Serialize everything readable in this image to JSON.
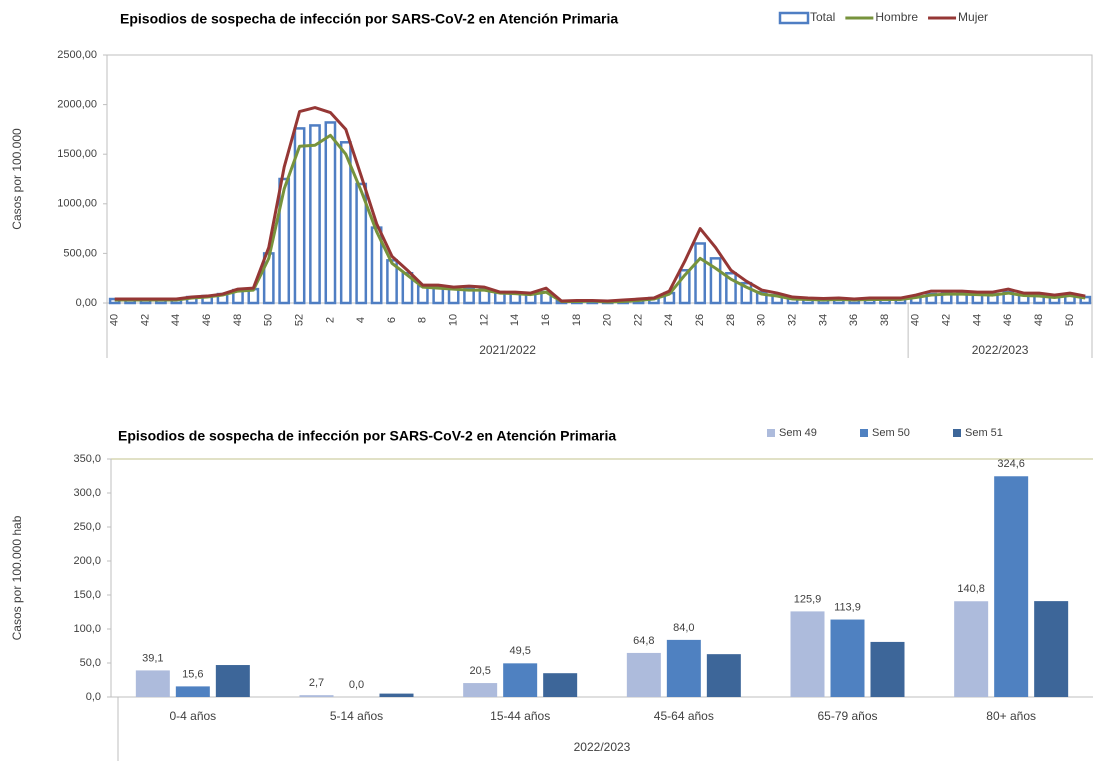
{
  "chart_data": [
    {
      "type": "combo",
      "title": "Episodios de sospecha de infección por SARS-CoV-2 en Atención Primaria",
      "y_label": "Casos por 100.000",
      "groups": [
        "2021/2022",
        "2022/2023"
      ],
      "categories": [
        "40",
        null,
        "42",
        null,
        "44",
        null,
        "46",
        null,
        "48",
        null,
        "50",
        null,
        "52",
        null,
        "2",
        null,
        "4",
        null,
        "6",
        null,
        "8",
        null,
        "10",
        null,
        "12",
        null,
        "14",
        null,
        "16",
        null,
        "18",
        null,
        "20",
        null,
        "22",
        null,
        "24",
        null,
        "26",
        null,
        "28",
        null,
        "30",
        null,
        "32",
        null,
        "34",
        null,
        "36",
        null,
        "38",
        null,
        "40",
        null,
        "42",
        null,
        "44",
        null,
        "46",
        null,
        "48",
        null,
        "50",
        null
      ],
      "ylim": [
        0,
        2500
      ],
      "yticks": [
        {
          "value": 0,
          "label": "0,00"
        },
        {
          "value": 500,
          "label": "500,00"
        },
        {
          "value": 1000,
          "label": "1000,00"
        },
        {
          "value": 1500,
          "label": "1500,00"
        },
        {
          "value": 2000,
          "label": "2000,00"
        },
        {
          "value": 2500,
          "label": "2500,00"
        }
      ],
      "grid": false,
      "legend": "top-right",
      "series": [
        {
          "name": "Total",
          "type": "bar",
          "color": "#4f7ec3",
          "values": [
            40,
            40,
            40,
            40,
            40,
            60,
            70,
            90,
            130,
            140,
            500,
            1250,
            1760,
            1790,
            1820,
            1620,
            1200,
            760,
            430,
            300,
            170,
            160,
            150,
            150,
            140,
            110,
            100,
            90,
            110,
            20,
            20,
            20,
            15,
            20,
            30,
            50,
            100,
            330,
            600,
            450,
            300,
            200,
            110,
            80,
            50,
            40,
            35,
            40,
            35,
            40,
            40,
            40,
            60,
            90,
            100,
            100,
            90,
            90,
            110,
            80,
            80,
            60,
            80,
            60
          ]
        },
        {
          "name": "Hombre",
          "type": "line",
          "color": "#77933c",
          "values": [
            30,
            30,
            30,
            30,
            30,
            50,
            60,
            80,
            120,
            130,
            450,
            1150,
            1580,
            1590,
            1690,
            1500,
            1130,
            720,
            400,
            280,
            160,
            150,
            140,
            130,
            130,
            100,
            95,
            85,
            110,
            15,
            15,
            20,
            10,
            15,
            25,
            40,
            90,
            280,
            450,
            350,
            240,
            160,
            90,
            70,
            40,
            35,
            30,
            35,
            30,
            35,
            35,
            35,
            55,
            80,
            90,
            90,
            85,
            80,
            100,
            75,
            70,
            55,
            75,
            50
          ]
        },
        {
          "name": "Mujer",
          "type": "line",
          "color": "#953735",
          "values": [
            40,
            40,
            40,
            40,
            40,
            60,
            70,
            90,
            140,
            150,
            560,
            1370,
            1930,
            1970,
            1920,
            1750,
            1280,
            800,
            470,
            330,
            180,
            180,
            160,
            170,
            160,
            110,
            110,
            100,
            150,
            20,
            25,
            25,
            20,
            30,
            40,
            50,
            120,
            420,
            750,
            560,
            330,
            220,
            130,
            100,
            60,
            50,
            45,
            50,
            40,
            50,
            50,
            50,
            80,
            120,
            120,
            120,
            110,
            110,
            140,
            100,
            100,
            80,
            100,
            70
          ]
        }
      ]
    },
    {
      "type": "bar",
      "title": "Episodios de sospecha de infección por SARS-CoV-2 en Atención Primaria",
      "y_label": "Casos por 100.000 hab",
      "x_label": "2022/2023",
      "categories": [
        "0-4 años",
        "5-14 años",
        "15-44 años",
        "45-64 años",
        "65-79 años",
        "80+ años"
      ],
      "ylim": [
        0,
        350
      ],
      "yticks": [
        {
          "value": 0,
          "label": "0,0"
        },
        {
          "value": 50,
          "label": "50,0"
        },
        {
          "value": 100,
          "label": "100,0"
        },
        {
          "value": 150,
          "label": "150,0"
        },
        {
          "value": 200,
          "label": "200,0"
        },
        {
          "value": 250,
          "label": "250,0"
        },
        {
          "value": 300,
          "label": "300,0"
        },
        {
          "value": 350,
          "label": "350,0"
        }
      ],
      "grid": false,
      "legend": "top-right",
      "series": [
        {
          "name": "Sem 49",
          "color": "#adbbdc",
          "values": [
            39.1,
            2.7,
            20.5,
            64.8,
            125.9,
            140.8
          ],
          "value_labels": [
            "39,1",
            "2,7",
            "20,5",
            "64,8",
            "125,9",
            "140,8"
          ]
        },
        {
          "name": "Sem 50",
          "color": "#4f81c1",
          "values": [
            15.6,
            0.0,
            49.5,
            84.0,
            113.9,
            324.6
          ],
          "value_labels": [
            "15,6",
            "0,0",
            "49,5",
            "84,0",
            "113,9",
            "324,6"
          ]
        },
        {
          "name": "Sem 51",
          "color": "#3d6699",
          "values": [
            47,
            5,
            35,
            63,
            81,
            141
          ]
        }
      ]
    }
  ]
}
